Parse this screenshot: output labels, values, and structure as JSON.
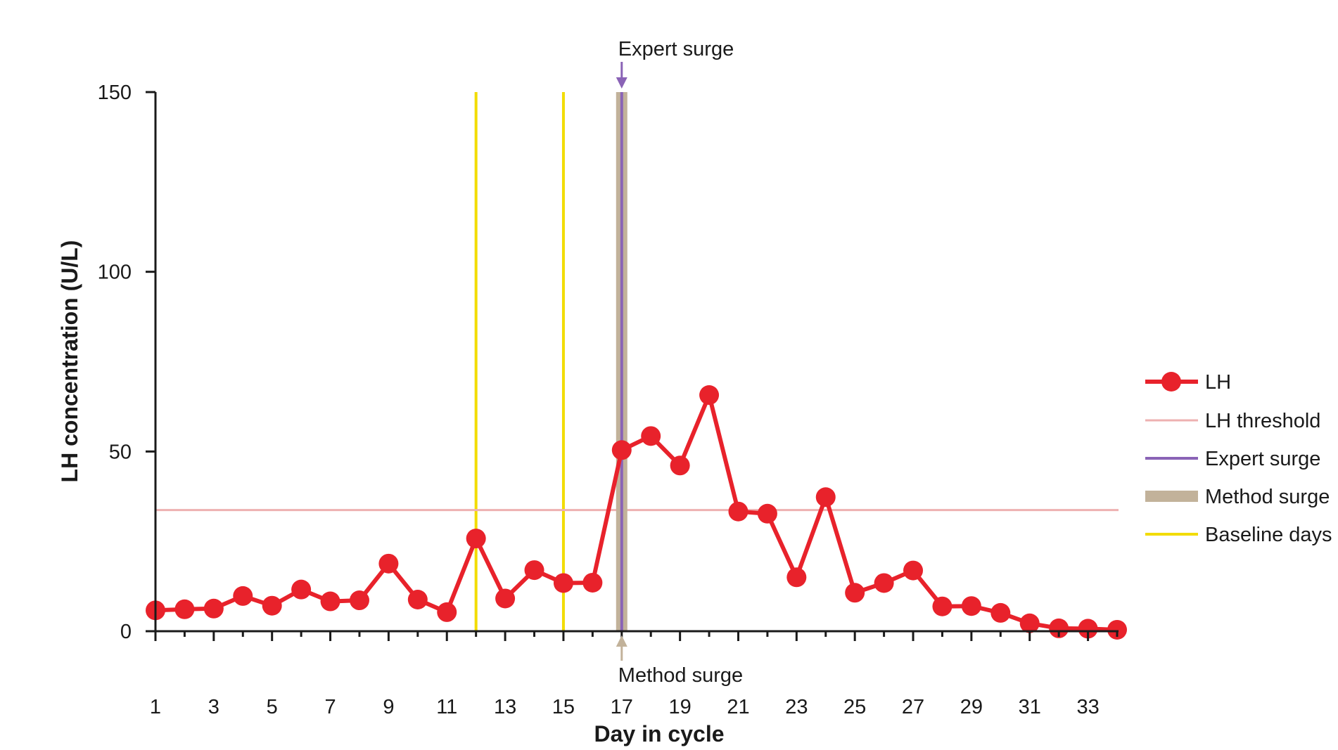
{
  "chart_data": {
    "type": "line",
    "xlabel": "Day in cycle",
    "ylabel": "LH concentration (U/L)",
    "xlim": [
      1,
      34
    ],
    "ylim": [
      0,
      150
    ],
    "x_ticks": [
      1,
      3,
      5,
      7,
      9,
      11,
      13,
      15,
      17,
      19,
      21,
      23,
      25,
      27,
      29,
      31,
      33
    ],
    "y_ticks": [
      0,
      50,
      100,
      150
    ],
    "grid": false,
    "legend_position": "right",
    "series": [
      {
        "name": "LH",
        "color": "#e8222b",
        "x": [
          1,
          2,
          3,
          4,
          5,
          6,
          7,
          8,
          9,
          10,
          11,
          12,
          13,
          14,
          15,
          16,
          17,
          18,
          19,
          20,
          21,
          22,
          23,
          24,
          25,
          26,
          27,
          28,
          29,
          30,
          31,
          32,
          33,
          34
        ],
        "values": [
          5.8,
          6.1,
          6.3,
          9.8,
          7.1,
          11.6,
          8.3,
          8.6,
          18.8,
          8.8,
          5.3,
          25.8,
          9.1,
          17.0,
          13.4,
          13.5,
          50.4,
          54.3,
          46.1,
          65.7,
          33.3,
          32.7,
          15.0,
          37.3,
          10.7,
          13.4,
          16.9,
          6.9,
          7.0,
          5.1,
          2.2,
          0.8,
          0.7,
          0.4
        ]
      }
    ],
    "threshold": {
      "name": "LH threshold",
      "value": 33.7,
      "color": "#eeb1b1"
    },
    "expert_surge": {
      "name": "Expert surge",
      "day": 17,
      "color": "#8a63b6"
    },
    "method_surge": {
      "name": "Method surge",
      "day": 17,
      "color": "#c2b29a"
    },
    "baseline_days": {
      "name": "Baseline days",
      "days": [
        12,
        15
      ],
      "color": "#f2dc00"
    },
    "annotations": {
      "expert_label": "Expert surge",
      "method_label": "Method surge"
    }
  }
}
